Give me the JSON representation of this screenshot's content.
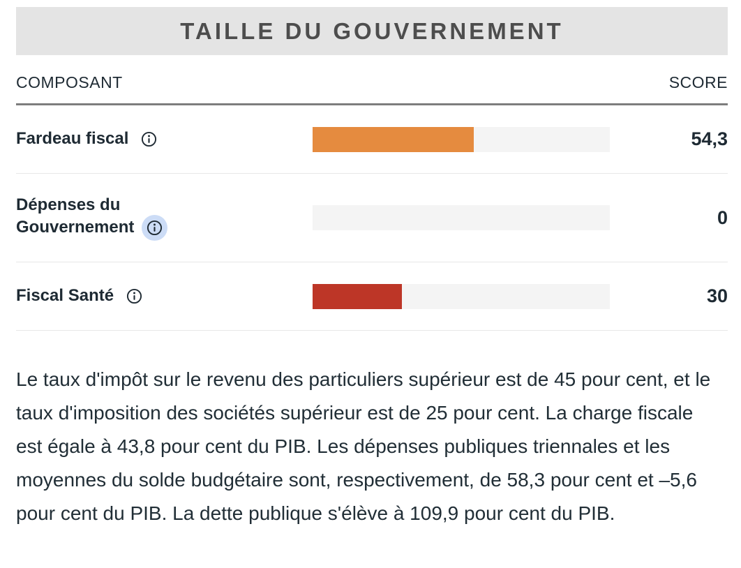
{
  "panel": {
    "title": "TAILLE DU GOUVERNEMENT",
    "column_component": "COMPOSANT",
    "column_score": "SCORE"
  },
  "rows": [
    {
      "label": "Fardeau fiscal",
      "score": "54,3",
      "value": 54.3,
      "color": "#e58b3f",
      "info_icon": "info-circle-icon",
      "info_highlighted": false
    },
    {
      "label": "Dépenses du Gouvernement",
      "score": "0",
      "value": 0,
      "color": "#e58b3f",
      "info_icon": "info-circle-icon",
      "info_highlighted": true
    },
    {
      "label": "Fiscal Santé",
      "score": "30",
      "value": 30,
      "color": "#bd3627",
      "info_icon": "info-circle-icon",
      "info_highlighted": false
    }
  ],
  "summary": "Le taux d'impôt sur le revenu des particuliers supérieur est de 45 pour cent, et le taux d'imposition des sociétés supérieur est de 25 pour cent. La charge fiscale est égale à 43,8 pour cent du PIB. Les dépenses publiques triennales et les moyennes du solde budgétaire sont, respectivement, de 58,3 pour cent et –5,6 pour cent du PIB. La dette publique s'élève à 109,9 pour cent du PIB.",
  "colors": {
    "header_bg": "#e4e4e4",
    "header_text": "#4d4d4d",
    "body_text": "#1e2a33",
    "bar_track": "#f4f4f4",
    "bar_orange": "#e58b3f",
    "bar_red": "#bd3627",
    "info_halo": "#ccdcf6",
    "strong_divider": "#7d7d7d",
    "light_divider": "#e7e7e7"
  },
  "chart_data": {
    "type": "bar",
    "orientation": "horizontal",
    "title": "TAILLE DU GOUVERNEMENT",
    "categories": [
      "Fardeau fiscal",
      "Dépenses du Gouvernement",
      "Fiscal Santé"
    ],
    "values": [
      54.3,
      0,
      30
    ],
    "value_labels": [
      "54,3",
      "0",
      "30"
    ],
    "xlim": [
      0,
      100
    ],
    "bar_colors": [
      "#e58b3f",
      "#f4f4f4",
      "#bd3627"
    ],
    "xlabel": "",
    "ylabel": "",
    "legend": false,
    "grid": false
  }
}
